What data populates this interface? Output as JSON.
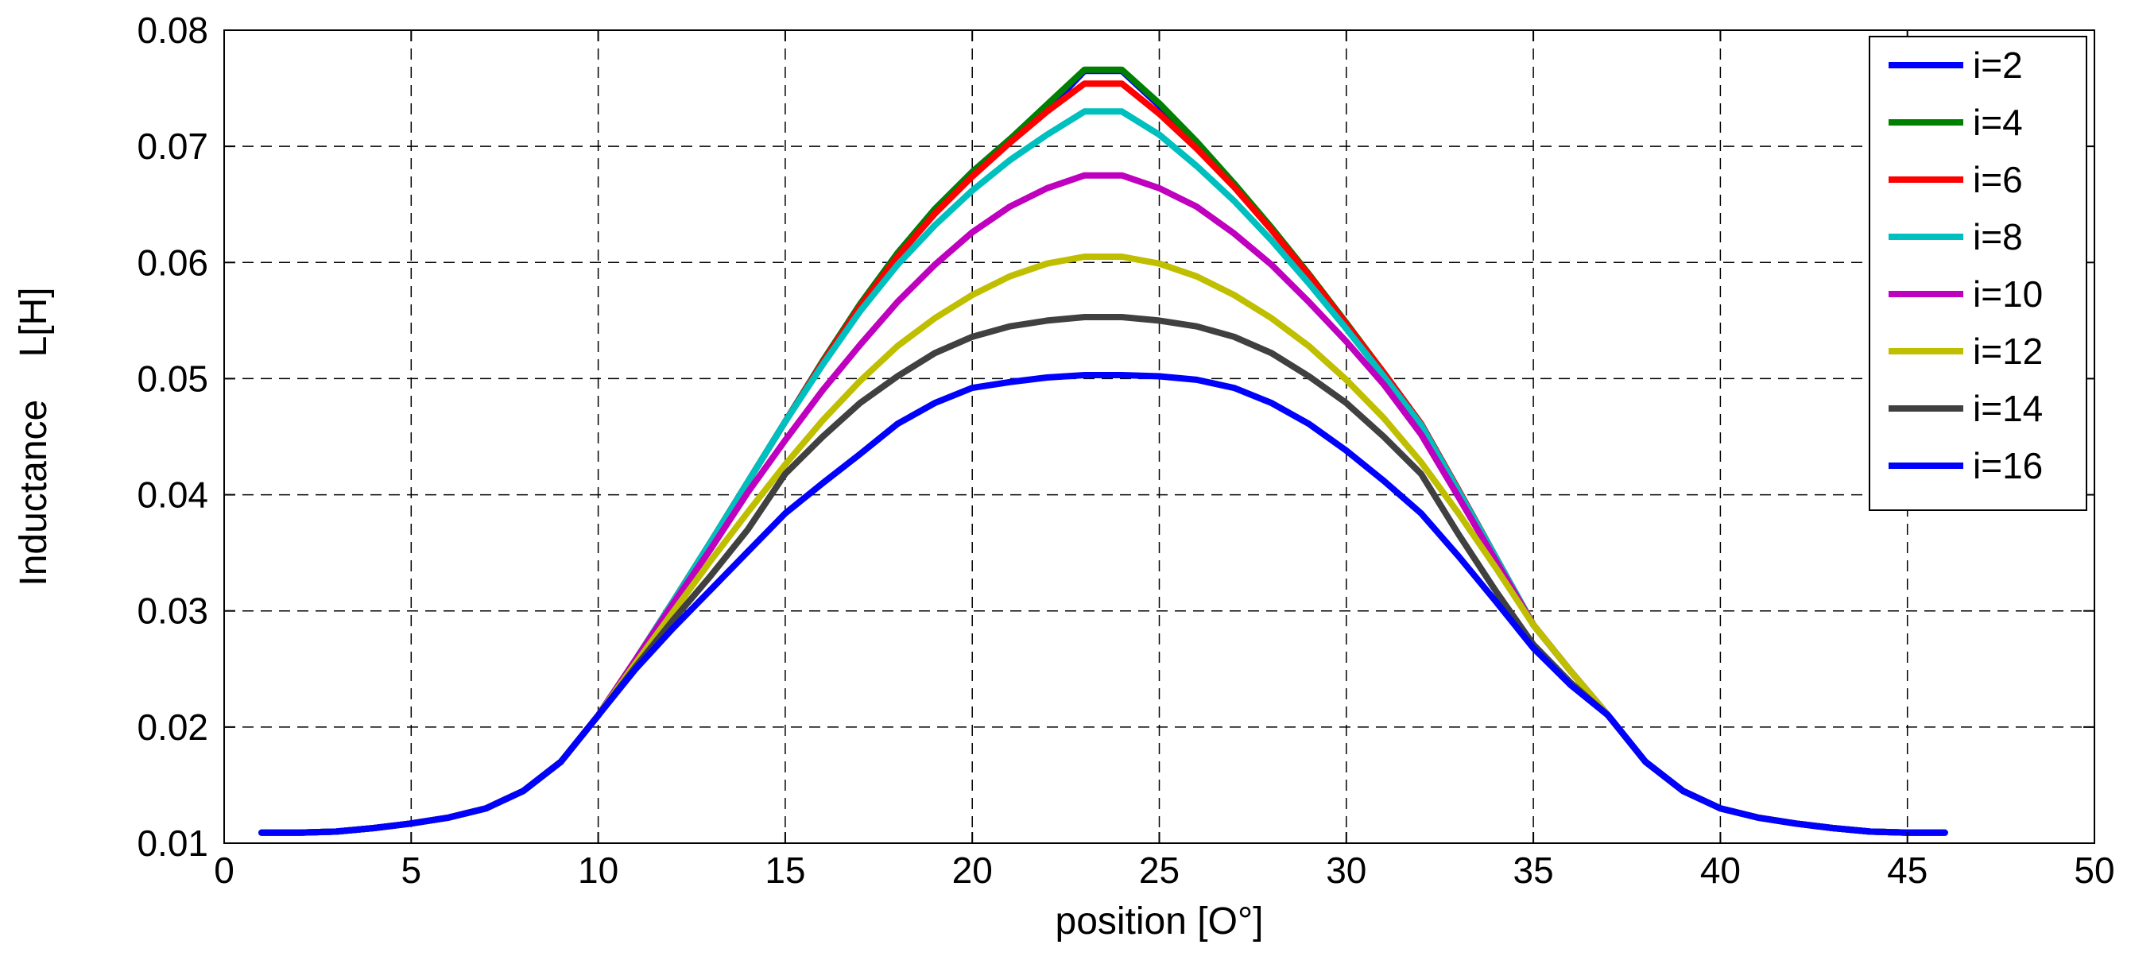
{
  "chart_data": {
    "type": "line",
    "title": "",
    "xlabel": "position [O°]",
    "ylabel": "Inductance    L[H]",
    "xlim": [
      0,
      50
    ],
    "ylim": [
      0.01,
      0.08
    ],
    "xticks": [
      0,
      5,
      10,
      15,
      20,
      25,
      30,
      35,
      40,
      45,
      50
    ],
    "yticks": [
      0.01,
      0.02,
      0.03,
      0.04,
      0.05,
      0.06,
      0.07,
      0.08
    ],
    "xtick_labels": [
      "0",
      "5",
      "10",
      "15",
      "20",
      "25",
      "30",
      "35",
      "40",
      "45",
      "50"
    ],
    "ytick_labels": [
      "0.01",
      "0.02",
      "0.03",
      "0.04",
      "0.05",
      "0.06",
      "0.07",
      "0.08"
    ],
    "grid": true,
    "legend_position": "top-right",
    "x": [
      1,
      2,
      3,
      4,
      5,
      6,
      7,
      8,
      9,
      10,
      11,
      12,
      13,
      14,
      15,
      16,
      17,
      18,
      19,
      20,
      21,
      22,
      23,
      24,
      25,
      26,
      27,
      28,
      29,
      30,
      31,
      32,
      33,
      34,
      35,
      36,
      37,
      38,
      39,
      40,
      41,
      42,
      43,
      44,
      45,
      46
    ],
    "series": [
      {
        "name": "i=2",
        "color": "#0000ff",
        "values": [
          0.0109,
          0.0109,
          0.011,
          0.0113,
          0.0117,
          0.0122,
          0.013,
          0.0145,
          0.017,
          0.021,
          0.0258,
          0.0308,
          0.0359,
          0.0411,
          0.0463,
          0.0515,
          0.0564,
          0.0608,
          0.0646,
          0.0678,
          0.0706,
          0.0731,
          0.0765,
          0.0765,
          0.0735,
          0.0702,
          0.0667,
          0.0629,
          0.0589,
          0.0547,
          0.0505,
          0.0461,
          0.0404,
          0.0346,
          0.0288,
          0.0248,
          0.021,
          0.017,
          0.0145,
          0.013,
          0.0122,
          0.0117,
          0.0113,
          0.011,
          0.0109,
          0.0109
        ]
      },
      {
        "name": "i=4",
        "color": "#008000",
        "values": [
          0.0109,
          0.0109,
          0.011,
          0.0113,
          0.0117,
          0.0122,
          0.013,
          0.0145,
          0.017,
          0.021,
          0.0258,
          0.0308,
          0.0359,
          0.0411,
          0.0463,
          0.0515,
          0.0564,
          0.0608,
          0.0646,
          0.0678,
          0.0706,
          0.0736,
          0.0766,
          0.0766,
          0.0737,
          0.0704,
          0.0668,
          0.063,
          0.059,
          0.0548,
          0.0505,
          0.0461,
          0.0404,
          0.0346,
          0.0288,
          0.0248,
          0.021,
          0.017,
          0.0145,
          0.013,
          0.0122,
          0.0117,
          0.0113,
          0.011,
          0.0109,
          0.0109
        ]
      },
      {
        "name": "i=6",
        "color": "#ff0000",
        "values": [
          0.0109,
          0.0109,
          0.011,
          0.0113,
          0.0117,
          0.0122,
          0.013,
          0.0145,
          0.017,
          0.021,
          0.0258,
          0.0308,
          0.0359,
          0.0411,
          0.0463,
          0.0514,
          0.0562,
          0.0605,
          0.0642,
          0.0674,
          0.0703,
          0.073,
          0.0754,
          0.0754,
          0.0728,
          0.0698,
          0.0665,
          0.0628,
          0.0589,
          0.0547,
          0.0505,
          0.0461,
          0.0404,
          0.0346,
          0.0288,
          0.0248,
          0.021,
          0.017,
          0.0145,
          0.013,
          0.0122,
          0.0117,
          0.0113,
          0.011,
          0.0109,
          0.0109
        ]
      },
      {
        "name": "i=8",
        "color": "#00bfbf",
        "values": [
          0.0109,
          0.0109,
          0.011,
          0.0113,
          0.0117,
          0.0122,
          0.013,
          0.0145,
          0.017,
          0.021,
          0.0258,
          0.0308,
          0.0359,
          0.0411,
          0.0463,
          0.0512,
          0.0558,
          0.0598,
          0.0632,
          0.0662,
          0.0688,
          0.071,
          0.073,
          0.073,
          0.071,
          0.0683,
          0.0653,
          0.0619,
          0.0582,
          0.0543,
          0.0502,
          0.046,
          0.0403,
          0.0346,
          0.0288,
          0.0248,
          0.021,
          0.017,
          0.0145,
          0.013,
          0.0122,
          0.0117,
          0.0113,
          0.011,
          0.0109,
          0.0109
        ]
      },
      {
        "name": "i=10",
        "color": "#bf00bf",
        "values": [
          0.0109,
          0.0109,
          0.011,
          0.0113,
          0.0117,
          0.0122,
          0.013,
          0.0145,
          0.017,
          0.021,
          0.0258,
          0.0306,
          0.0353,
          0.0402,
          0.0447,
          0.049,
          0.0529,
          0.0566,
          0.0598,
          0.0626,
          0.0648,
          0.0664,
          0.0675,
          0.0675,
          0.0664,
          0.0648,
          0.0625,
          0.0598,
          0.0566,
          0.0532,
          0.0495,
          0.0452,
          0.0398,
          0.0343,
          0.0288,
          0.0248,
          0.021,
          0.017,
          0.0145,
          0.013,
          0.0122,
          0.0117,
          0.0113,
          0.011,
          0.0109,
          0.0109
        ]
      },
      {
        "name": "i=12",
        "color": "#bfbf00",
        "values": [
          0.0109,
          0.0109,
          0.011,
          0.0113,
          0.0117,
          0.0122,
          0.013,
          0.0145,
          0.017,
          0.021,
          0.0255,
          0.0299,
          0.0343,
          0.0385,
          0.0426,
          0.0464,
          0.0498,
          0.0528,
          0.0552,
          0.0572,
          0.0588,
          0.0599,
          0.0605,
          0.0605,
          0.0599,
          0.0588,
          0.0572,
          0.0552,
          0.0528,
          0.0499,
          0.0466,
          0.0428,
          0.0384,
          0.0337,
          0.0288,
          0.0248,
          0.021,
          0.017,
          0.0145,
          0.013,
          0.0122,
          0.0117,
          0.0113,
          0.011,
          0.0109,
          0.0109
        ]
      },
      {
        "name": "i=14",
        "color": "#404040",
        "values": [
          0.0109,
          0.0109,
          0.011,
          0.0113,
          0.0117,
          0.0122,
          0.013,
          0.0145,
          0.017,
          0.021,
          0.0252,
          0.0292,
          0.033,
          0.037,
          0.0418,
          0.045,
          0.0479,
          0.0502,
          0.0522,
          0.0536,
          0.0545,
          0.055,
          0.0553,
          0.0553,
          0.055,
          0.0545,
          0.0536,
          0.0522,
          0.0502,
          0.0479,
          0.045,
          0.0418,
          0.0366,
          0.0317,
          0.0271,
          0.0238,
          0.021,
          0.017,
          0.0145,
          0.013,
          0.0122,
          0.0117,
          0.0113,
          0.011,
          0.0109,
          0.0109
        ]
      },
      {
        "name": "i=16",
        "color": "#0000ff",
        "values": [
          0.0109,
          0.0109,
          0.011,
          0.0113,
          0.0117,
          0.0122,
          0.013,
          0.0145,
          0.017,
          0.021,
          0.025,
          0.0285,
          0.0318,
          0.0351,
          0.0384,
          0.041,
          0.0435,
          0.0461,
          0.0479,
          0.0492,
          0.0497,
          0.0501,
          0.0503,
          0.0503,
          0.0502,
          0.0499,
          0.0492,
          0.0479,
          0.0461,
          0.0438,
          0.0412,
          0.0384,
          0.0347,
          0.0308,
          0.0268,
          0.0236,
          0.021,
          0.017,
          0.0145,
          0.013,
          0.0122,
          0.0117,
          0.0113,
          0.011,
          0.0109,
          0.0109
        ]
      }
    ]
  }
}
